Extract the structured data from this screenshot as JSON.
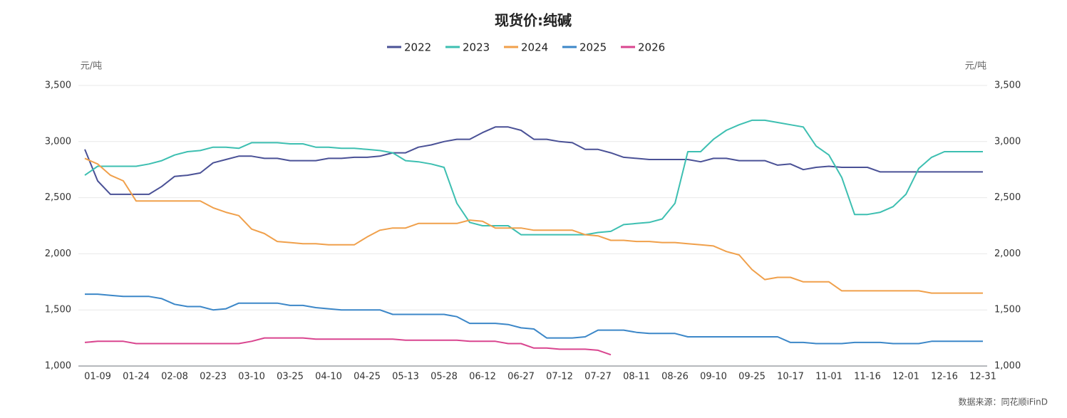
{
  "chart_data": {
    "type": "line",
    "title": "现货价:纯碱",
    "y_label": "元/吨",
    "y2_label": "元/吨",
    "source": "数据来源：同花顺iFinD",
    "categories": [
      null,
      "01-09",
      null,
      null,
      "01-24",
      null,
      null,
      "02-08",
      null,
      null,
      "02-23",
      null,
      null,
      "03-10",
      null,
      null,
      "03-25",
      null,
      null,
      "04-10",
      null,
      null,
      "04-25",
      null,
      null,
      "05-13",
      null,
      null,
      "05-28",
      null,
      null,
      "06-12",
      null,
      null,
      "06-27",
      null,
      null,
      "07-12",
      null,
      null,
      "07-27",
      null,
      null,
      "08-11",
      null,
      null,
      "08-26",
      null,
      null,
      "09-10",
      null,
      null,
      "09-25",
      null,
      null,
      "10-17",
      null,
      null,
      "11-01",
      null,
      null,
      "11-16",
      null,
      null,
      "12-01",
      null,
      null,
      "12-16",
      null,
      null,
      "12-31"
    ],
    "ylim": [
      1000,
      3500
    ],
    "yticks": [
      {
        "value": 1000,
        "label": "1,000"
      },
      {
        "value": 1500,
        "label": "1,500"
      },
      {
        "value": 2000,
        "label": "2,000"
      },
      {
        "value": 2500,
        "label": "2,500"
      },
      {
        "value": 3000,
        "label": "3,000"
      },
      {
        "value": 3500,
        "label": "3,500"
      }
    ],
    "y2lim": [
      1000,
      3500
    ],
    "y2ticks": [
      {
        "value": 1000,
        "label": "1,000"
      },
      {
        "value": 1500,
        "label": "1,500"
      },
      {
        "value": 2000,
        "label": "2,000"
      },
      {
        "value": 2500,
        "label": "2,500"
      },
      {
        "value": 3000,
        "label": "3,000"
      },
      {
        "value": 3500,
        "label": "3,500"
      }
    ],
    "grid": true,
    "series": [
      {
        "name": "2022",
        "color": "#4a5196",
        "values": [
          2930,
          2650,
          2530,
          2530,
          2530,
          2530,
          2600,
          2690,
          2700,
          2720,
          2810,
          2840,
          2870,
          2870,
          2850,
          2850,
          2830,
          2830,
          2830,
          2850,
          2850,
          2860,
          2860,
          2870,
          2900,
          2900,
          2950,
          2970,
          3000,
          3020,
          3020,
          3080,
          3130,
          3130,
          3100,
          3020,
          3020,
          3000,
          2990,
          2930,
          2930,
          2900,
          2860,
          2850,
          2840,
          2840,
          2840,
          2840,
          2820,
          2850,
          2850,
          2830,
          2830,
          2830,
          2790,
          2800,
          2750,
          2770,
          2780,
          2770,
          2770,
          2770,
          2730,
          2730,
          2730,
          2730,
          2730,
          2730,
          2730,
          2730,
          2730
        ]
      },
      {
        "name": "2023",
        "color": "#3dbfb1",
        "values": [
          2700,
          2780,
          2780,
          2780,
          2780,
          2800,
          2830,
          2880,
          2910,
          2920,
          2950,
          2950,
          2940,
          2990,
          2990,
          2990,
          2980,
          2980,
          2950,
          2950,
          2940,
          2940,
          2930,
          2920,
          2900,
          2830,
          2820,
          2800,
          2770,
          2450,
          2280,
          2250,
          2250,
          2250,
          2170,
          2170,
          2170,
          2170,
          2170,
          2170,
          2190,
          2200,
          2260,
          2270,
          2280,
          2310,
          2450,
          2910,
          2910,
          3020,
          3100,
          3150,
          3190,
          3190,
          3170,
          3150,
          3130,
          2960,
          2880,
          2680,
          2350,
          2350,
          2370,
          2420,
          2530,
          2760,
          2860,
          2910,
          2910,
          2910,
          2910
        ]
      },
      {
        "name": "2024",
        "color": "#f0a04b",
        "values": [
          2850,
          2800,
          2700,
          2650,
          2470,
          2470,
          2470,
          2470,
          2470,
          2470,
          2410,
          2370,
          2340,
          2220,
          2180,
          2110,
          2100,
          2090,
          2090,
          2080,
          2080,
          2080,
          2150,
          2210,
          2230,
          2230,
          2270,
          2270,
          2270,
          2270,
          2300,
          2290,
          2230,
          2230,
          2230,
          2210,
          2210,
          2210,
          2210,
          2170,
          2160,
          2120,
          2120,
          2110,
          2110,
          2100,
          2100,
          2090,
          2080,
          2070,
          2020,
          1990,
          1860,
          1770,
          1790,
          1790,
          1750,
          1750,
          1750,
          1670,
          1670,
          1670,
          1670,
          1670,
          1670,
          1670,
          1650,
          1650,
          1650,
          1650,
          1650
        ]
      },
      {
        "name": "2025",
        "color": "#3c87c8",
        "values": [
          1640,
          1640,
          1630,
          1620,
          1620,
          1620,
          1600,
          1550,
          1530,
          1530,
          1500,
          1510,
          1560,
          1560,
          1560,
          1560,
          1540,
          1540,
          1520,
          1510,
          1500,
          1500,
          1500,
          1500,
          1460,
          1460,
          1460,
          1460,
          1460,
          1440,
          1380,
          1380,
          1380,
          1370,
          1340,
          1330,
          1250,
          1250,
          1250,
          1260,
          1320,
          1320,
          1320,
          1300,
          1290,
          1290,
          1290,
          1260,
          1260,
          1260,
          1260,
          1260,
          1260,
          1260,
          1260,
          1210,
          1210,
          1200,
          1200,
          1200,
          1210,
          1210,
          1210,
          1200,
          1200,
          1200,
          1220,
          1220,
          1220,
          1220,
          1220
        ]
      },
      {
        "name": "2026",
        "color": "#d9458f",
        "values": [
          1210,
          1220,
          1220,
          1220,
          1200,
          1200,
          1200,
          1200,
          1200,
          1200,
          1200,
          1200,
          1200,
          1220,
          1250,
          1250,
          1250,
          1250,
          1240,
          1240,
          1240,
          1240,
          1240,
          1240,
          1240,
          1230,
          1230,
          1230,
          1230,
          1230,
          1220,
          1220,
          1220,
          1200,
          1200,
          1160,
          1160,
          1150,
          1150,
          1150,
          1140,
          1100,
          null,
          null,
          null,
          null,
          null,
          null,
          null,
          null,
          null,
          null,
          null,
          null,
          null,
          null,
          null,
          null,
          null,
          null,
          null,
          null,
          null,
          null,
          null,
          null,
          null,
          null,
          null,
          null,
          null
        ]
      }
    ]
  }
}
